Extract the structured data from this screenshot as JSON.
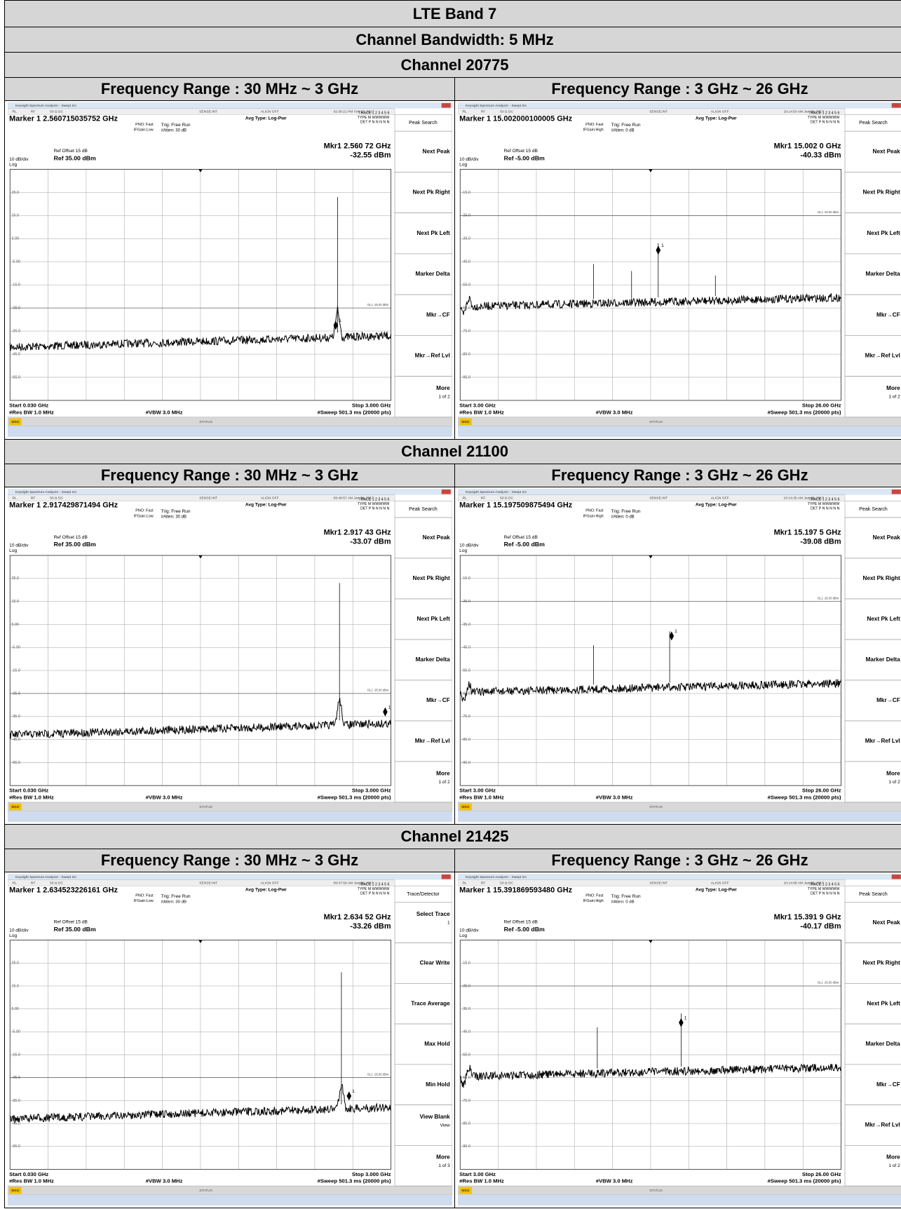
{
  "header": {
    "title": "LTE Band 7",
    "bandwidth": "Channel Bandwidth: 5 MHz"
  },
  "ranges": [
    "Frequency Range : 30 MHz ~ 3 GHz",
    "Frequency Range : 3 GHz ~ 26 GHz"
  ],
  "common": {
    "app_title": "Keysight Spectrum Analyzer - Swept SA",
    "status_items": [
      "RL",
      "RF",
      "50 Ω DC",
      "SENSE:INT",
      "ALIGN OFF"
    ],
    "pno": "PNO: Fast",
    "trig": "Trig: Free Run",
    "avg": "Avg Type: Log-Pwr",
    "trace_lines": [
      "TRACE 1 2 3 4 5 6",
      "TYPE M WWWWW",
      "DET P N N N N N"
    ],
    "ref_offset": "Ref Offset 15 dB",
    "scale": "10 dB/div",
    "log": "Log",
    "dl": "DL1 -25.00 dBm",
    "rbw": "#Res BW 1.0 MHz",
    "vbw": "#VBW 3.0 MHz",
    "sweep": "#Sweep  501.3 ms (20000 pts)",
    "msg": "MSG",
    "status": "STATUS"
  },
  "channels": [
    {
      "name": "Channel 20775",
      "panels": [
        {
          "time": "02:38:21 PM Feb 17, 2017",
          "marker": "Marker 1 2.560715035752 GHz",
          "ifgain": "IFGain:Low",
          "atten": "#Atten: 30 dB",
          "mkr": "Mkr1 2.560 72 GHz",
          "mkr_amp": "-32.55 dBm",
          "ref": "Ref 35.00 dBm",
          "yticks": [
            "25.0",
            "15.0",
            "5.00",
            "-5.00",
            "-15.0",
            "-25.0",
            "-35.0",
            "-45.0",
            "-55.0"
          ],
          "start": "Start 0.030 GHz",
          "stop": "Stop 3.000 GHz",
          "menu": "Peak Search",
          "keys": [
            {
              "label": "Next Peak"
            },
            {
              "label": "Next Pk Right"
            },
            {
              "label": "Next Pk Left"
            },
            {
              "label": "Marker Delta"
            },
            {
              "label": "Mkr→CF"
            },
            {
              "label": "Mkr→Ref Lvl"
            },
            {
              "label": "More",
              "sub": "1 of 2"
            }
          ]
        },
        {
          "time": "10:14:50 AM Jan 28, 2017",
          "marker": "Marker 1 15.002000100005 GHz",
          "ifgain": "IFGain:High",
          "atten": "#Atten: 0 dB",
          "mkr": "Mkr1 15.002 0 GHz",
          "mkr_amp": "-40.33 dBm",
          "ref": "Ref -5.00 dBm",
          "yticks": [
            "-15.0",
            "-25.0",
            "-35.0",
            "-45.0",
            "-55.0",
            "-65.0",
            "-75.0",
            "-85.0",
            "-95.0"
          ],
          "start": "Start 3.00 GHz",
          "stop": "Stop 26.00 GHz",
          "menu": "Peak Search",
          "keys": [
            {
              "label": "Next Peak"
            },
            {
              "label": "Next Pk Right"
            },
            {
              "label": "Next Pk Left"
            },
            {
              "label": "Marker Delta"
            },
            {
              "label": "Mkr→CF"
            },
            {
              "label": "Mkr→Ref Lvl"
            },
            {
              "label": "More",
              "sub": "1 of 2"
            }
          ]
        }
      ]
    },
    {
      "name": "Channel 21100",
      "panels": [
        {
          "time": "09:48:57 AM Jan 28, 2017",
          "marker": "Marker 1 2.917429871494 GHz",
          "ifgain": "IFGain:Low",
          "atten": "#Atten: 30 dB",
          "mkr": "Mkr1 2.917 43 GHz",
          "mkr_amp": "-33.07 dBm",
          "ref": "Ref 35.00 dBm",
          "yticks": [
            "25.0",
            "15.0",
            "5.00",
            "-5.00",
            "-15.0",
            "-25.0",
            "-35.0",
            "-45.0",
            "-55.0"
          ],
          "start": "Start 0.030 GHz",
          "stop": "Stop 3.000 GHz",
          "menu": "Peak Search",
          "keys": [
            {
              "label": "Next Peak"
            },
            {
              "label": "Next Pk Right"
            },
            {
              "label": "Next Pk Left"
            },
            {
              "label": "Marker Delta"
            },
            {
              "label": "Mkr→CF"
            },
            {
              "label": "Mkr→Ref Lvl"
            },
            {
              "label": "More",
              "sub": "1 of 2"
            }
          ]
        },
        {
          "time": "10:14:30 AM Jan 28, 2017",
          "marker": "Marker 1 15.197509875494 GHz",
          "ifgain": "IFGain:High",
          "atten": "#Atten: 0 dB",
          "mkr": "Mkr1 15.197 5 GHz",
          "mkr_amp": "-39.08 dBm",
          "ref": "Ref -5.00 dBm",
          "yticks": [
            "-15.0",
            "-25.0",
            "-35.0",
            "-45.0",
            "-55.0",
            "-65.0",
            "-75.0",
            "-85.0",
            "-95.0"
          ],
          "start": "Start 3.00 GHz",
          "stop": "Stop 26.00 GHz",
          "menu": "Peak Search",
          "keys": [
            {
              "label": "Next Peak"
            },
            {
              "label": "Next Pk Right"
            },
            {
              "label": "Next Pk Left"
            },
            {
              "label": "Marker Delta"
            },
            {
              "label": "Mkr→CF"
            },
            {
              "label": "Mkr→Ref Lvl"
            },
            {
              "label": "More",
              "sub": "1 of 2"
            }
          ]
        }
      ]
    },
    {
      "name": "Channel 21425",
      "panels": [
        {
          "time": "09:47:59 AM Jan 28, 2017",
          "marker": "Marker 1 2.634523226161 GHz",
          "ifgain": "IFGain:Low",
          "atten": "#Atten: 30 dB",
          "mkr": "Mkr1 2.634 52 GHz",
          "mkr_amp": "-33.26 dBm",
          "ref": "Ref 35.00 dBm",
          "yticks": [
            "25.0",
            "15.0",
            "5.00",
            "-5.00",
            "-15.0",
            "-25.0",
            "-35.0",
            "-45.0",
            "-55.0"
          ],
          "start": "Start 0.030 GHz",
          "stop": "Stop 3.000 GHz",
          "menu": "Trace/Detector",
          "keys": [
            {
              "label": "Select Trace",
              "sub": "1"
            },
            {
              "label": "Clear Write"
            },
            {
              "label": "Trace Average"
            },
            {
              "label": "Max Hold"
            },
            {
              "label": "Min Hold"
            },
            {
              "label": "View Blank",
              "sub": "View"
            },
            {
              "label": "More",
              "sub": "1 of 3"
            }
          ]
        },
        {
          "time": "10:14:08 AM Jan 28, 2017",
          "marker": "Marker 1 15.391869593480 GHz",
          "ifgain": "IFGain:High",
          "atten": "#Atten: 0 dB",
          "mkr": "Mkr1 15.391 9 GHz",
          "mkr_amp": "-40.17 dBm",
          "ref": "Ref -5.00 dBm",
          "yticks": [
            "-15.0",
            "-25.0",
            "-35.0",
            "-45.0",
            "-55.0",
            "-65.0",
            "-75.0",
            "-85.0",
            "-95.0"
          ],
          "start": "Start 3.00 GHz",
          "stop": "Stop 26.00 GHz",
          "menu": "Peak Search",
          "keys": [
            {
              "label": "Next Peak"
            },
            {
              "label": "Next Pk Right"
            },
            {
              "label": "Next Pk Left"
            },
            {
              "label": "Marker Delta"
            },
            {
              "label": "Mkr→CF"
            },
            {
              "label": "Mkr→Ref Lvl"
            },
            {
              "label": "More",
              "sub": "1 of 2"
            }
          ]
        }
      ]
    }
  ]
}
